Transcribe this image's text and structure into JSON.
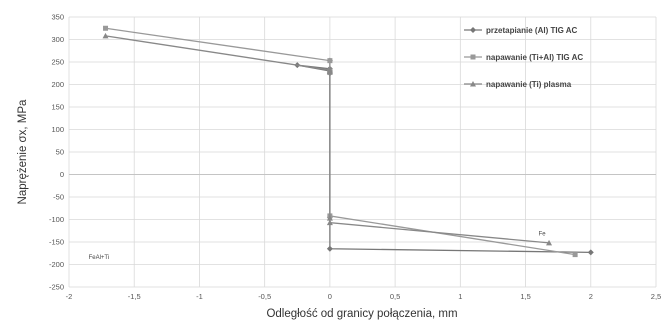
{
  "chart_data": {
    "type": "line",
    "title": "",
    "xlabel": "Odległość od granicy połączenia, mm",
    "ylabel": "Naprężenie σx, MPa",
    "xlim": [
      -2,
      2.5
    ],
    "ylim": [
      -250,
      350
    ],
    "xticks": [
      -2,
      -1.5,
      -1,
      -0.5,
      0,
      0.5,
      1,
      1.5,
      2,
      2.5
    ],
    "xtick_labels": [
      "-2",
      "-1,5",
      "-1",
      "-0,5",
      "0",
      "0,5",
      "1",
      "1,5",
      "2",
      "2,5"
    ],
    "yticks": [
      350,
      300,
      250,
      200,
      150,
      100,
      50,
      0,
      -50,
      -100,
      -150,
      -200,
      -250
    ],
    "ytick_labels": [
      "350",
      "300",
      "250",
      "200",
      "150",
      "100",
      "50",
      "0",
      "-50",
      "-100",
      "-150",
      "-200",
      "-250"
    ],
    "grid": true,
    "legend_position": "top-right",
    "series": [
      {
        "name": "przetapianie (Al) TIG AC",
        "color": "#777777",
        "marker": "diamond",
        "x": [
          0,
          0,
          -0.25,
          0,
          0,
          0,
          0,
          2
        ],
        "y": [
          253,
          235,
          243,
          230,
          225,
          -95,
          -165,
          -173
        ]
      },
      {
        "name": "napawanie (Ti+Al) TIG AC",
        "color": "#999999",
        "marker": "square",
        "x": [
          -1.72,
          0,
          0,
          0,
          0,
          1.88
        ],
        "y": [
          325,
          253,
          230,
          227,
          -92,
          -178
        ]
      },
      {
        "name": "napawanie (Ti) plasma",
        "color": "#888888",
        "marker": "triangle",
        "x": [
          -1.72,
          0,
          0,
          0,
          0,
          1.68
        ],
        "y": [
          308,
          232,
          228,
          -97,
          -107,
          -152
        ]
      }
    ],
    "annotations": [
      {
        "text": "Fe",
        "x": 1.6,
        "y": -135
      },
      {
        "text": "FeAl+Ti",
        "x": -1.85,
        "y": -188
      }
    ]
  }
}
